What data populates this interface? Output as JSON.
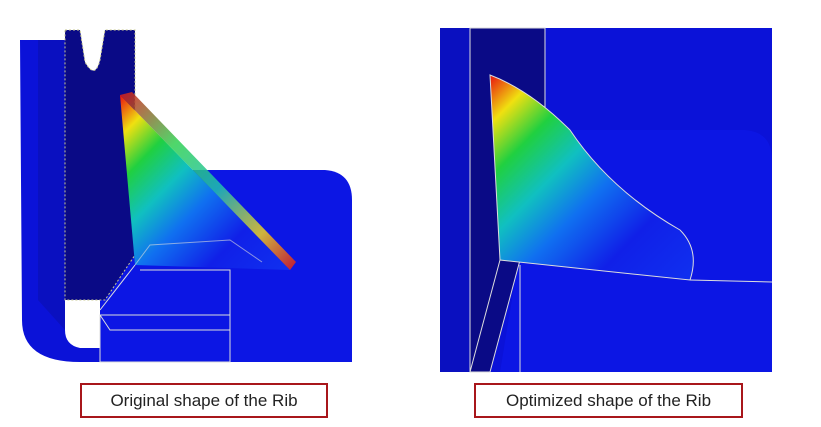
{
  "captions": {
    "left": "Original shape of the Rib",
    "right": "Optimized shape of the Rib"
  }
}
